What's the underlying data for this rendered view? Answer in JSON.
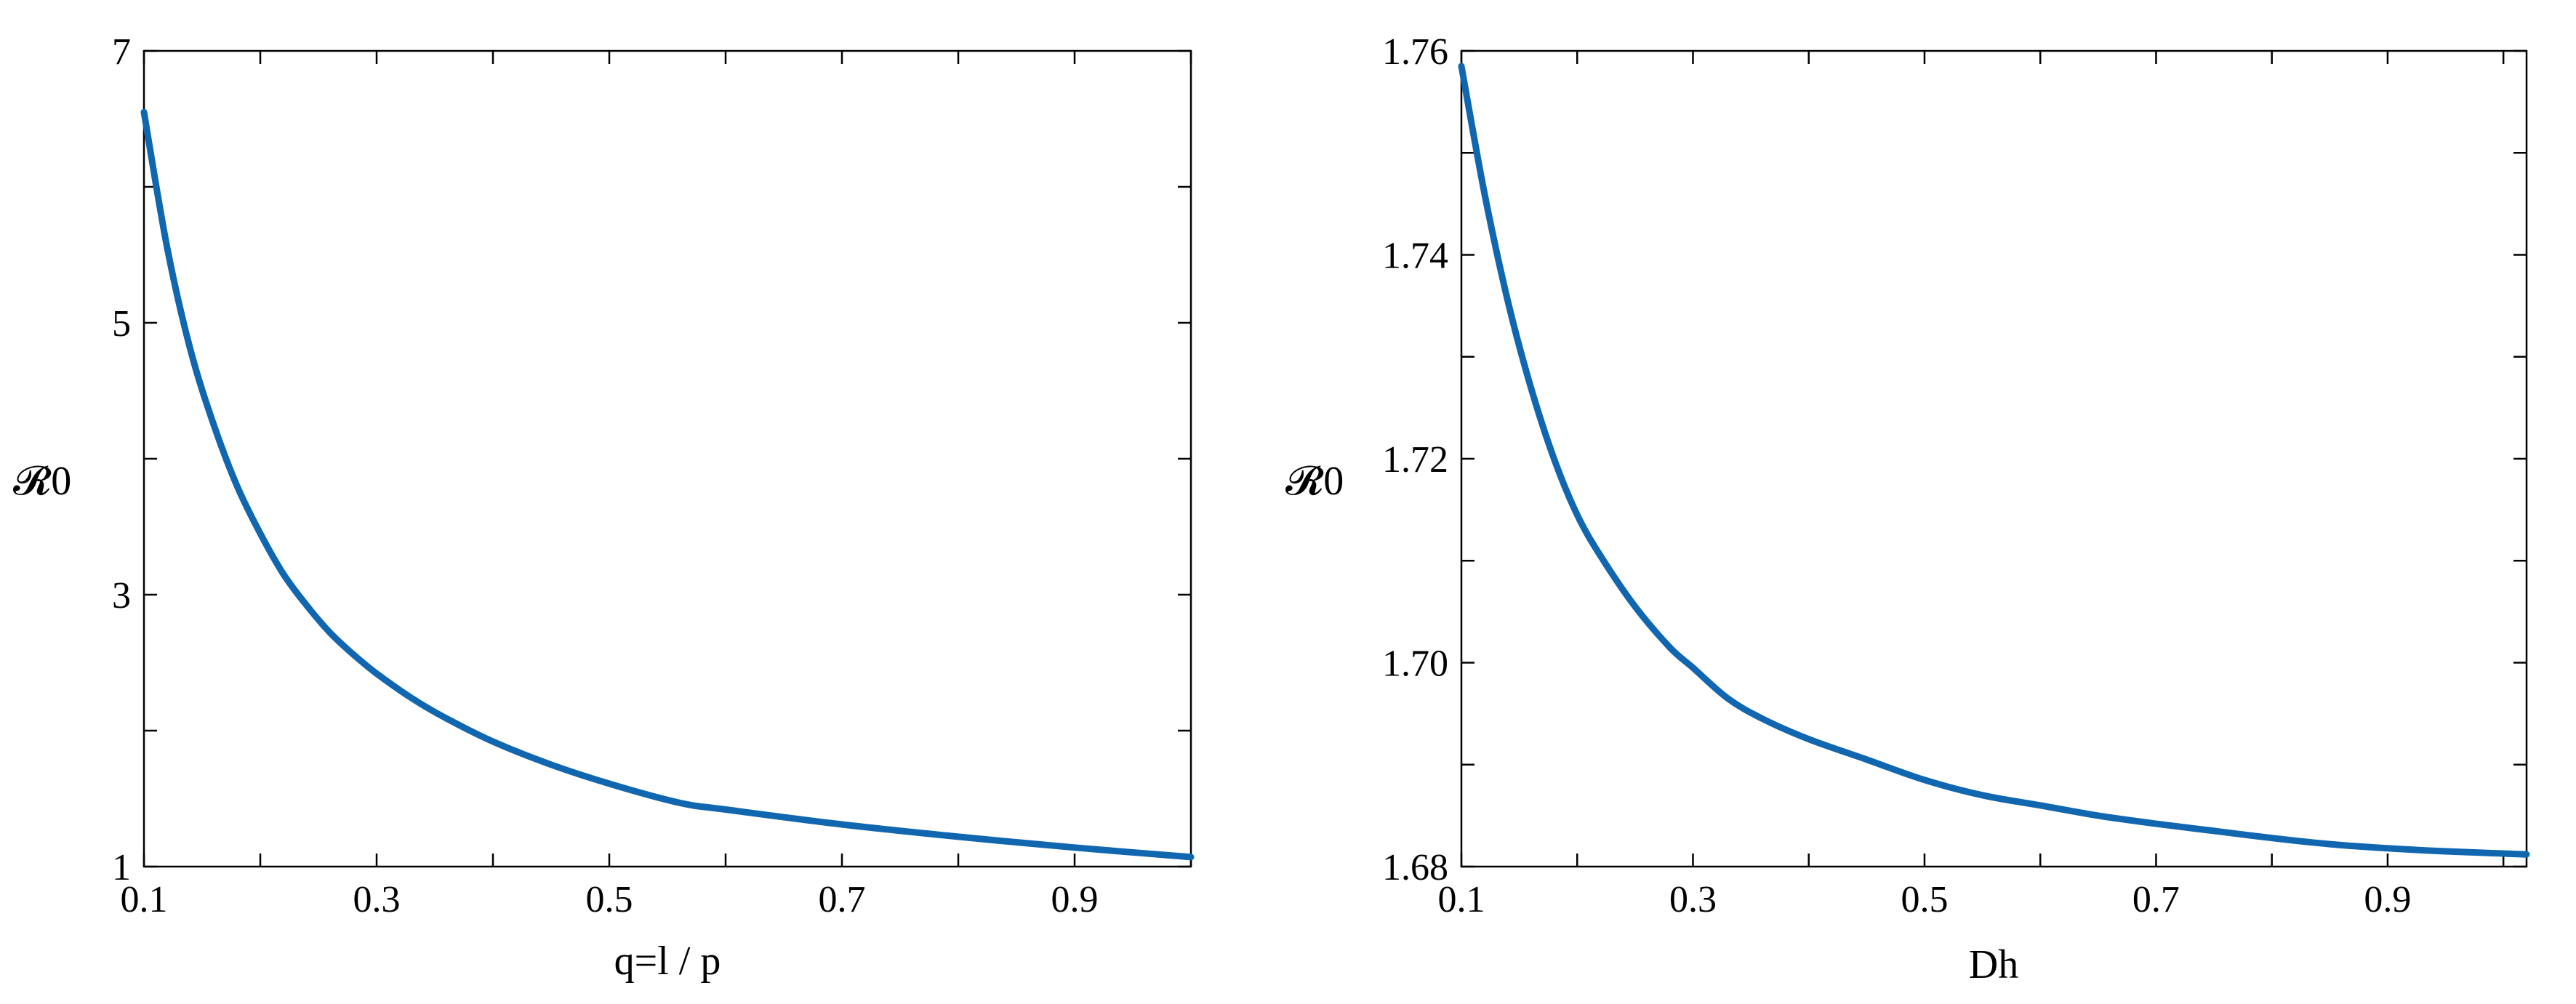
{
  "chart_data": [
    {
      "type": "line",
      "title": "",
      "ylabel": "𝓡0",
      "xlabel": "q=l / p",
      "xlim": [
        0.1,
        1.0
      ],
      "ylim": [
        1,
        7
      ],
      "x_ticks": [
        0.1,
        0.2,
        0.3,
        0.4,
        0.5,
        0.6,
        0.7,
        0.8,
        0.9,
        1.0
      ],
      "x_tick_labels": [
        "0.1",
        "",
        "0.3",
        "",
        "0.5",
        "",
        "0.7",
        "",
        "0.9",
        ""
      ],
      "y_ticks": [
        1,
        2,
        3,
        4,
        5,
        6,
        7
      ],
      "y_tick_labels": [
        "1",
        "",
        "3",
        "",
        "5",
        "",
        "7"
      ],
      "grid": false,
      "series": [
        {
          "color": "#1166b0",
          "x": [
            0.1,
            0.12,
            0.14,
            0.16,
            0.18,
            0.2,
            0.22,
            0.24,
            0.26,
            0.28,
            0.3,
            0.33,
            0.36,
            0.4,
            0.45,
            0.5,
            0.56,
            0.6,
            0.7,
            0.8,
            0.9,
            1.0
          ],
          "y": [
            6.55,
            5.55,
            4.8,
            4.25,
            3.8,
            3.45,
            3.15,
            2.92,
            2.72,
            2.56,
            2.42,
            2.24,
            2.09,
            1.92,
            1.75,
            1.61,
            1.47,
            1.42,
            1.31,
            1.22,
            1.14,
            1.07
          ]
        }
      ]
    },
    {
      "type": "line",
      "title": "",
      "ylabel": "𝓡0",
      "xlabel": "Dh",
      "xlim": [
        0.1,
        1.02
      ],
      "ylim": [
        1.68,
        1.76
      ],
      "x_ticks": [
        0.1,
        0.2,
        0.3,
        0.4,
        0.5,
        0.6,
        0.7,
        0.8,
        0.9,
        1.0
      ],
      "x_tick_labels": [
        "0.1",
        "",
        "0.3",
        "",
        "0.5",
        "",
        "0.7",
        "",
        "0.9",
        ""
      ],
      "y_ticks": [
        1.68,
        1.69,
        1.7,
        1.71,
        1.72,
        1.73,
        1.74,
        1.75,
        1.76
      ],
      "y_tick_labels": [
        "1.68",
        "",
        "1.70",
        "",
        "1.72",
        "",
        "1.74",
        "",
        "1.76"
      ],
      "grid": false,
      "series": [
        {
          "color": "#1166b0",
          "x": [
            0.1,
            0.12,
            0.14,
            0.16,
            0.18,
            0.2,
            0.22,
            0.25,
            0.28,
            0.3,
            0.33,
            0.36,
            0.4,
            0.45,
            0.5,
            0.55,
            0.6,
            0.65,
            0.7,
            0.75,
            0.8,
            0.85,
            0.9,
            0.95,
            1.02
          ],
          "y": [
            1.7585,
            1.746,
            1.7355,
            1.727,
            1.72,
            1.7145,
            1.7105,
            1.7055,
            1.7015,
            1.6995,
            1.6965,
            1.6945,
            1.6925,
            1.6905,
            1.6885,
            1.687,
            1.686,
            1.685,
            1.6842,
            1.6835,
            1.6828,
            1.6822,
            1.6818,
            1.6815,
            1.6812
          ]
        }
      ]
    }
  ]
}
